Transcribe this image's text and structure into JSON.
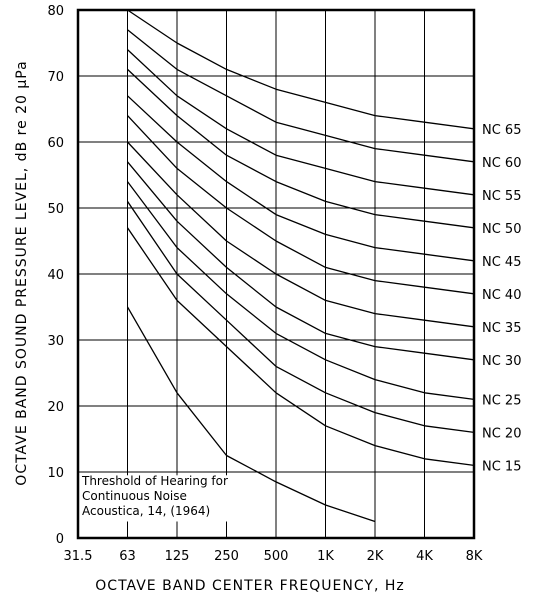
{
  "chart_data": {
    "type": "line",
    "title": "",
    "xlabel": "OCTAVE BAND CENTER FREQUENCY, Hz",
    "ylabel": "OCTAVE BAND SOUND PRESSURE LEVEL, dB re 20 μPa",
    "categories": [
      "31.5",
      "63",
      "125",
      "250",
      "500",
      "1K",
      "2K",
      "4K",
      "8K"
    ],
    "yticks": [
      "0",
      "10",
      "20",
      "30",
      "40",
      "50",
      "60",
      "70",
      "80"
    ],
    "ylim": [
      0,
      80
    ],
    "grid": true,
    "series": [
      {
        "name": "NC 65",
        "values": [
          null,
          80,
          75,
          71,
          68,
          66,
          64,
          63,
          62
        ]
      },
      {
        "name": "NC 60",
        "values": [
          null,
          77,
          71,
          67,
          63,
          61,
          59,
          58,
          57
        ]
      },
      {
        "name": "NC 55",
        "values": [
          null,
          74,
          67,
          62,
          58,
          56,
          54,
          53,
          52
        ]
      },
      {
        "name": "NC 50",
        "values": [
          null,
          71,
          64,
          58,
          54,
          51,
          49,
          48,
          47
        ]
      },
      {
        "name": "NC 45",
        "values": [
          null,
          67,
          60,
          54,
          49,
          46,
          44,
          43,
          42
        ]
      },
      {
        "name": "NC 40",
        "values": [
          null,
          64,
          56,
          50,
          45,
          41,
          39,
          38,
          37
        ]
      },
      {
        "name": "NC 35",
        "values": [
          null,
          60,
          52,
          45,
          40,
          36,
          34,
          33,
          32
        ]
      },
      {
        "name": "NC 30",
        "values": [
          null,
          57,
          48,
          41,
          35,
          31,
          29,
          28,
          27
        ]
      },
      {
        "name": "NC 25",
        "values": [
          null,
          54,
          44,
          37,
          31,
          27,
          24,
          22,
          21
        ]
      },
      {
        "name": "NC 20",
        "values": [
          null,
          51,
          40,
          33,
          26,
          22,
          19,
          17,
          16
        ]
      },
      {
        "name": "NC 15",
        "values": [
          null,
          47,
          36,
          29,
          22,
          17,
          14,
          12,
          11
        ]
      },
      {
        "name": "Threshold of Hearing",
        "values": [
          null,
          35,
          22,
          12.5,
          8.5,
          5,
          2.5,
          null,
          null
        ]
      }
    ],
    "annotation": [
      "Threshold of Hearing for",
      "Continuous Noise",
      "Acoustica, 14, (1964)"
    ]
  }
}
